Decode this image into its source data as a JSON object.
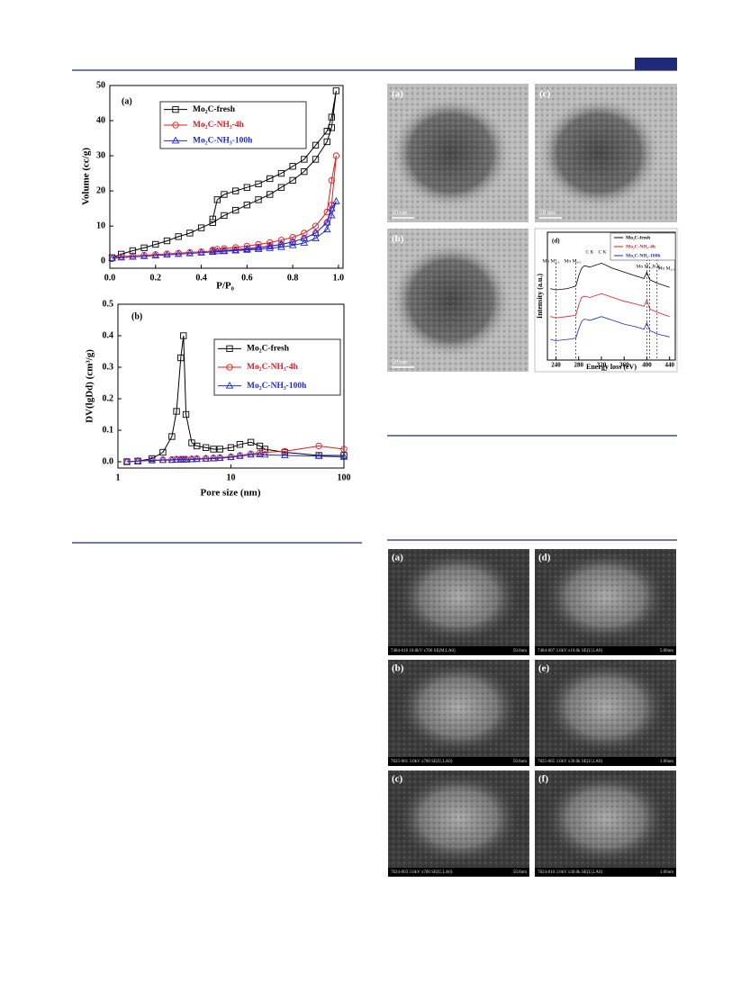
{
  "chart_data": [
    {
      "type": "line",
      "panel_label": "(a)",
      "x_label": "P/P₀",
      "y_label": "Volume (cc/g)",
      "x": [
        0.01,
        0.05,
        0.1,
        0.15,
        0.2,
        0.25,
        0.3,
        0.35,
        0.4,
        0.45,
        0.5,
        0.55,
        0.6,
        0.65,
        0.7,
        0.75,
        0.8,
        0.85,
        0.9,
        0.95,
        0.97,
        0.99,
        0.97,
        0.95,
        0.9,
        0.85,
        0.8,
        0.75,
        0.7,
        0.65,
        0.6,
        0.55,
        0.5,
        0.47,
        0.45
      ],
      "xlim": [
        0,
        1.02
      ],
      "ylim": [
        -2,
        50
      ],
      "xticks": [
        {
          "value": 0,
          "label": "0.0"
        },
        0.2,
        0.4,
        0.6,
        0.8,
        {
          "value": 1,
          "label": "1.0"
        }
      ],
      "yticks": [
        0,
        10,
        20,
        30,
        40,
        50
      ],
      "series": [
        {
          "name": "Mo₂C-fresh",
          "color": "#000000",
          "marker": "square",
          "values": [
            1,
            2,
            3,
            3.8,
            4.8,
            5.8,
            7,
            8,
            9.5,
            11,
            13,
            14.5,
            16,
            17.5,
            19,
            21,
            23,
            25.5,
            29,
            34,
            38,
            48.5,
            41,
            37,
            33,
            29,
            27,
            25,
            23.5,
            22,
            21,
            20,
            19,
            17.5,
            12
          ]
        },
        {
          "name": "Mo₂C-NH₃-4h",
          "color": "#e8191e",
          "marker": "circle",
          "values": [
            1,
            1.3,
            1.5,
            1.7,
            1.9,
            2.1,
            2.3,
            2.5,
            2.7,
            2.9,
            3.1,
            3.3,
            3.6,
            3.9,
            4.3,
            4.8,
            5.5,
            6.5,
            8,
            11,
            16,
            30,
            23,
            14,
            10,
            8,
            6.8,
            6,
            5.3,
            4.8,
            4.3,
            3.9,
            3.6,
            3.4,
            3.2
          ]
        },
        {
          "name": "Mo₂C-NH₃-100h",
          "color": "#1f2ad6",
          "marker": "triangle",
          "values": [
            0.8,
            1,
            1.2,
            1.4,
            1.6,
            1.8,
            2,
            2.2,
            2.4,
            2.6,
            2.8,
            3,
            3.2,
            3.4,
            3.7,
            4,
            4.5,
            5.2,
            6.5,
            9,
            13,
            17,
            15,
            11,
            8,
            6.5,
            5.5,
            4.8,
            4.2,
            3.8,
            3.4,
            3.1,
            2.9,
            2.8,
            2.7
          ]
        }
      ]
    },
    {
      "type": "line",
      "panel_label": "(b)",
      "x_label": "Pore size (nm)",
      "y_label": "DV(lgDd) (cm³/g)",
      "xscale": "log",
      "x": [
        1.2,
        1.5,
        2,
        2.5,
        3,
        3.3,
        3.6,
        3.8,
        4,
        4.5,
        5,
        6,
        7,
        8,
        10,
        12,
        15,
        18,
        20,
        30,
        60,
        100
      ],
      "xlim": [
        1,
        100
      ],
      "ylim": [
        -0.02,
        0.5
      ],
      "xticks": [
        1,
        10,
        100
      ],
      "yticks": [
        {
          "value": 0,
          "label": "0.0"
        },
        0.1,
        0.2,
        0.3,
        0.4,
        0.5
      ],
      "series": [
        {
          "name": "Mo₂C-fresh",
          "color": "#000000",
          "marker": "square",
          "values": [
            0,
            0.002,
            0.01,
            0.03,
            0.08,
            0.16,
            0.33,
            0.4,
            0.15,
            0.06,
            0.05,
            0.045,
            0.04,
            0.04,
            0.045,
            0.055,
            0.062,
            0.05,
            0.04,
            0.03,
            0.02,
            0.02
          ]
        },
        {
          "name": "Mo₂C-NH₃-4h",
          "color": "#e8191e",
          "marker": "circle",
          "values": [
            0,
            0.002,
            0.005,
            0.006,
            0.007,
            0.008,
            0.008,
            0.008,
            0.008,
            0.009,
            0.01,
            0.011,
            0.012,
            0.013,
            0.016,
            0.02,
            0.025,
            0.028,
            0.03,
            0.033,
            0.05,
            0.04
          ]
        },
        {
          "name": "Mo₂C-NH₃-100h",
          "color": "#1f2ad6",
          "marker": "triangle",
          "values": [
            0,
            0.002,
            0.004,
            0.005,
            0.005,
            0.006,
            0.006,
            0.006,
            0.006,
            0.007,
            0.008,
            0.009,
            0.01,
            0.011,
            0.014,
            0.018,
            0.022,
            0.023,
            0.022,
            0.02,
            0.018,
            0.015
          ]
        }
      ]
    },
    {
      "type": "line",
      "panel_label": "(d)",
      "x_label": "Energy loss (eV)",
      "y_label": "Intensity (a.u.)",
      "x": [
        230,
        240,
        260,
        275,
        280,
        285,
        290,
        300,
        320,
        340,
        360,
        380,
        395,
        400,
        405,
        410,
        420,
        440
      ],
      "xlim": [
        225,
        450
      ],
      "xticks": [
        240,
        280,
        320,
        360,
        400,
        440
      ],
      "reference_lines": [
        240,
        275,
        400,
        405,
        418
      ],
      "annotations": [
        "Mo M₂,₃",
        "Mo M₄,₅",
        "C K",
        "C K",
        "Mo M₂,₃",
        "N K",
        "Mo M₂,₃"
      ],
      "series": [
        {
          "name": "Mo₂C-fresh",
          "color": "#000000",
          "values": [
            5.6,
            5.5,
            5.6,
            5.8,
            6.6,
            7.2,
            7.4,
            7.3,
            7.6,
            7.2,
            6.9,
            6.6,
            6.4,
            6.9,
            6.3,
            6.2,
            6.0,
            5.7
          ]
        },
        {
          "name": "Mo₂C-NH₃-4h",
          "color": "#e8191e",
          "values": [
            3.4,
            3.3,
            3.4,
            3.5,
            4.3,
            4.9,
            5.0,
            4.9,
            5.2,
            4.9,
            4.6,
            4.4,
            4.2,
            4.7,
            4.0,
            3.9,
            3.7,
            3.4
          ]
        },
        {
          "name": "Mo₂C-NH₃-100h",
          "color": "#1f2ad6",
          "values": [
            1.6,
            1.5,
            1.6,
            1.7,
            2.4,
            3.0,
            3.2,
            3.1,
            3.4,
            3.1,
            2.8,
            2.6,
            2.4,
            2.9,
            2.3,
            2.2,
            2.0,
            1.8
          ]
        }
      ]
    }
  ],
  "tem_images": [
    {
      "label": "(a)",
      "scale": "50 nm"
    },
    {
      "label": "(c)",
      "scale": "50 nm"
    },
    {
      "label": "(b)",
      "scale": "50 nm"
    }
  ],
  "sem_images": [
    {
      "label": "(a)",
      "info": "7484-016 10.0kV x700 SE(M,LA0)",
      "scale": "50.0um"
    },
    {
      "label": "(d)",
      "info": "7484-007 3.0kV x10.0k SE(U,LA0)",
      "scale": "5.00um"
    },
    {
      "label": "(b)",
      "info": "7825-001 3.0kV x700 SE(U,LA0)",
      "scale": "50.0um"
    },
    {
      "label": "(e)",
      "info": "7825-005 3.0kV x30.0k SE(U,LA0)",
      "scale": "1.00um"
    },
    {
      "label": "(c)",
      "info": "7824-003 3.0kV x700 SE(U,LA0)",
      "scale": "50.0um"
    },
    {
      "label": "(f)",
      "info": "7824-010 3.0kV x30.0k SE(U,LA0)",
      "scale": "1.00um"
    }
  ]
}
